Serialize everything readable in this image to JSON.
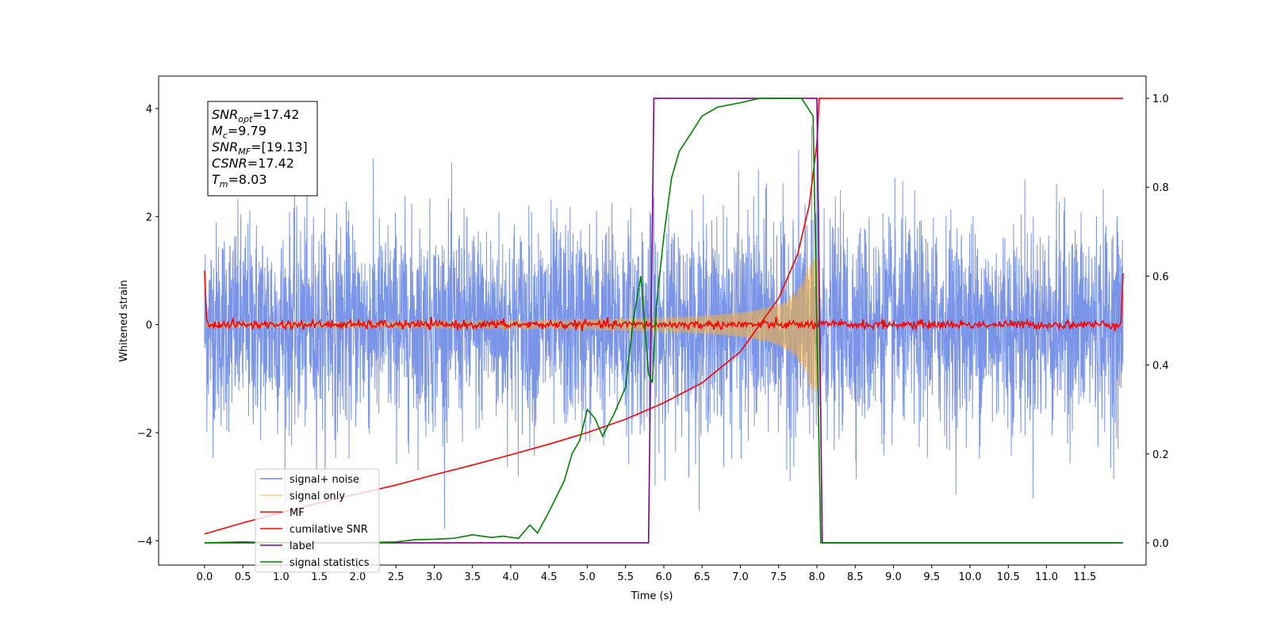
{
  "chart_data": {
    "type": "line",
    "title": "",
    "xlabel": "Time (s)",
    "ylabel": "Whitened strain",
    "y2label": "",
    "xlim": [
      -0.6,
      12.3
    ],
    "ylim": [
      -4.45,
      4.6
    ],
    "y2lim": [
      -0.05,
      1.05
    ],
    "xticks": [
      "0.0",
      "0.5",
      "1.0",
      "1.5",
      "2.0",
      "2.5",
      "3.0",
      "3.5",
      "4.0",
      "4.5",
      "5.0",
      "5.5",
      "6.0",
      "6.5",
      "7.0",
      "7.5",
      "8.0",
      "8.5",
      "9.0",
      "9.5",
      "10.0",
      "10.5",
      "11.0",
      "11.5"
    ],
    "yticks": [
      "−4",
      "−2",
      "0",
      "2",
      "4"
    ],
    "y2ticks": [
      "0.0",
      "0.2",
      "0.4",
      "0.6",
      "0.8",
      "1.0"
    ],
    "grid": false,
    "legend_position": "lower-left",
    "annotation": [
      {
        "base": "SNR",
        "sub": "opt",
        "rest": "=17.42"
      },
      {
        "base": "M",
        "sub": "c",
        "rest": "=9.79"
      },
      {
        "base": "SNR",
        "sub": "MF",
        "rest": "=[19.13]"
      },
      {
        "base": "CSNR",
        "sub": "",
        "rest": "=17.42"
      },
      {
        "base": "T",
        "sub": "m",
        "rest": "=8.03"
      }
    ],
    "series": [
      {
        "name": "signal+ noise",
        "axis": "left",
        "color": "#6b8ae6",
        "kind": "white noise (std ~0.9) plus chirp, t = 0 to 12 s"
      },
      {
        "name": "signal only",
        "axis": "left",
        "color": "#f5b041",
        "kind": "chirp merging at t = 8.03 s, peak amplitude ~1.2"
      },
      {
        "name": "MF",
        "axis": "left",
        "color": "#ff0000",
        "kind": "matched-filter output near 0"
      },
      {
        "name": "cumilative SNR",
        "axis": "right",
        "color": "#ff0000",
        "x": [
          0.0,
          0.5,
          1.0,
          1.5,
          2.0,
          2.5,
          3.0,
          3.5,
          4.0,
          4.5,
          5.0,
          5.5,
          6.0,
          6.5,
          7.0,
          7.5,
          7.75,
          7.9,
          8.0,
          8.03,
          12.0
        ],
        "y": [
          0.02,
          0.045,
          0.068,
          0.09,
          0.11,
          0.13,
          0.153,
          0.175,
          0.198,
          0.222,
          0.248,
          0.278,
          0.315,
          0.36,
          0.43,
          0.55,
          0.65,
          0.76,
          0.9,
          1.0,
          1.0
        ]
      },
      {
        "name": "label",
        "axis": "right",
        "color": "#800080",
        "x": [
          0.0,
          5.8,
          5.87,
          8.0,
          8.07,
          12.0
        ],
        "y": [
          0.0,
          0.0,
          1.0,
          1.0,
          0.0,
          0.0
        ]
      },
      {
        "name": "signal statistics",
        "axis": "right",
        "color": "#008000",
        "x": [
          0.0,
          0.5,
          1.0,
          1.5,
          2.0,
          2.5,
          2.75,
          3.0,
          3.25,
          3.5,
          3.75,
          3.9,
          4.1,
          4.25,
          4.35,
          4.5,
          4.7,
          4.8,
          4.9,
          5.0,
          5.1,
          5.2,
          5.35,
          5.5,
          5.6,
          5.7,
          5.8,
          5.85,
          5.9,
          6.0,
          6.1,
          6.2,
          6.35,
          6.5,
          6.7,
          7.0,
          7.25,
          7.5,
          7.8,
          7.95,
          8.05,
          8.2,
          12.0
        ],
        "y": [
          0.0,
          0.002,
          0.0,
          0.0,
          0.0,
          0.002,
          0.007,
          0.008,
          0.01,
          0.018,
          0.012,
          0.015,
          0.01,
          0.04,
          0.022,
          0.07,
          0.14,
          0.2,
          0.23,
          0.3,
          0.28,
          0.24,
          0.29,
          0.35,
          0.5,
          0.6,
          0.38,
          0.36,
          0.53,
          0.69,
          0.82,
          0.88,
          0.92,
          0.96,
          0.98,
          0.99,
          1.0,
          1.0,
          1.0,
          0.96,
          0.0,
          0.0,
          0.0
        ]
      }
    ]
  }
}
